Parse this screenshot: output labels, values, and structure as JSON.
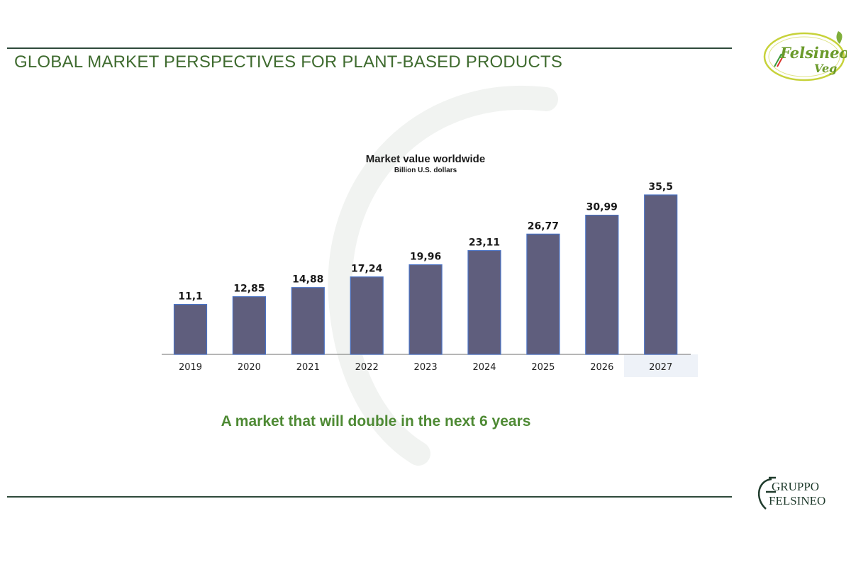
{
  "page": {
    "title": "GLOBAL MARKET PERSPECTIVES FOR PLANT-BASED PRODUCTS",
    "caption": "A market that will double in the next 6 years"
  },
  "logos": {
    "top": {
      "line1": "Felsineo",
      "line2": "Veg"
    },
    "bottom": {
      "line1": "GRUPPO",
      "line2": "FELSINEO"
    }
  },
  "colors": {
    "title": "#3f6b2f",
    "caption": "#4e8a34",
    "bar_fill": "#5f5e7d",
    "bar_stroke": "#4a72c4",
    "rule": "#2e4a3a"
  },
  "chart_data": {
    "type": "bar",
    "title": "Market value worldwide",
    "subtitle": "Billion U.S. dollars",
    "categories": [
      "2019",
      "2020",
      "2021",
      "2022",
      "2023",
      "2024",
      "2025",
      "2026",
      "2027"
    ],
    "values": [
      11.1,
      12.85,
      14.88,
      17.24,
      19.96,
      23.11,
      26.77,
      30.99,
      35.5
    ],
    "value_labels": [
      "11,1",
      "12,85",
      "14,88",
      "17,24",
      "19,96",
      "23,11",
      "26,77",
      "30,99",
      "35,5"
    ],
    "ylim": [
      0,
      35.5
    ],
    "grid": false,
    "legend": "none"
  }
}
